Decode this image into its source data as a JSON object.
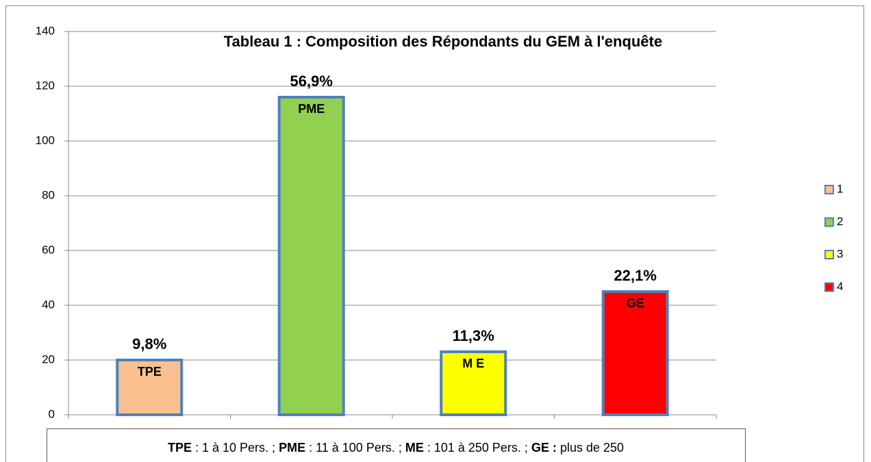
{
  "chart_data": {
    "type": "bar",
    "title": "Tableau 1 : Composition des Répondants du GEM à l'enquête",
    "categories": [
      null,
      null,
      null,
      null
    ],
    "values": [
      20,
      116,
      23,
      45
    ],
    "colors": [
      "#fac090",
      "#92d050",
      "#ffff00",
      "#ff0000"
    ],
    "legend": [
      "1",
      "2",
      "3",
      "4"
    ],
    "legend_position": "right",
    "bar_labels": [
      {
        "top": "9,8%",
        "inside": "TPE"
      },
      {
        "top": "56,9%",
        "inside": "PME"
      },
      {
        "top": "11,3%",
        "inside": "M E"
      },
      {
        "top": "22,1%",
        "inside": "GE"
      }
    ],
    "ylim": [
      0,
      140
    ],
    "yticks": [
      0,
      20,
      40,
      60,
      80,
      100,
      120,
      140
    ],
    "grid": true,
    "footnote": [
      {
        "text": "TPE",
        "bold": true
      },
      {
        "text": " : 1 à 10 Pers. ; "
      },
      {
        "text": "PME",
        "bold": true
      },
      {
        "text": " : 11 à 100 Pers. ; "
      },
      {
        "text": "ME",
        "bold": true
      },
      {
        "text": " : 101 à 250 Pers. ; "
      },
      {
        "text": "GE :",
        "bold": true
      },
      {
        "text": " plus de 250"
      }
    ]
  }
}
